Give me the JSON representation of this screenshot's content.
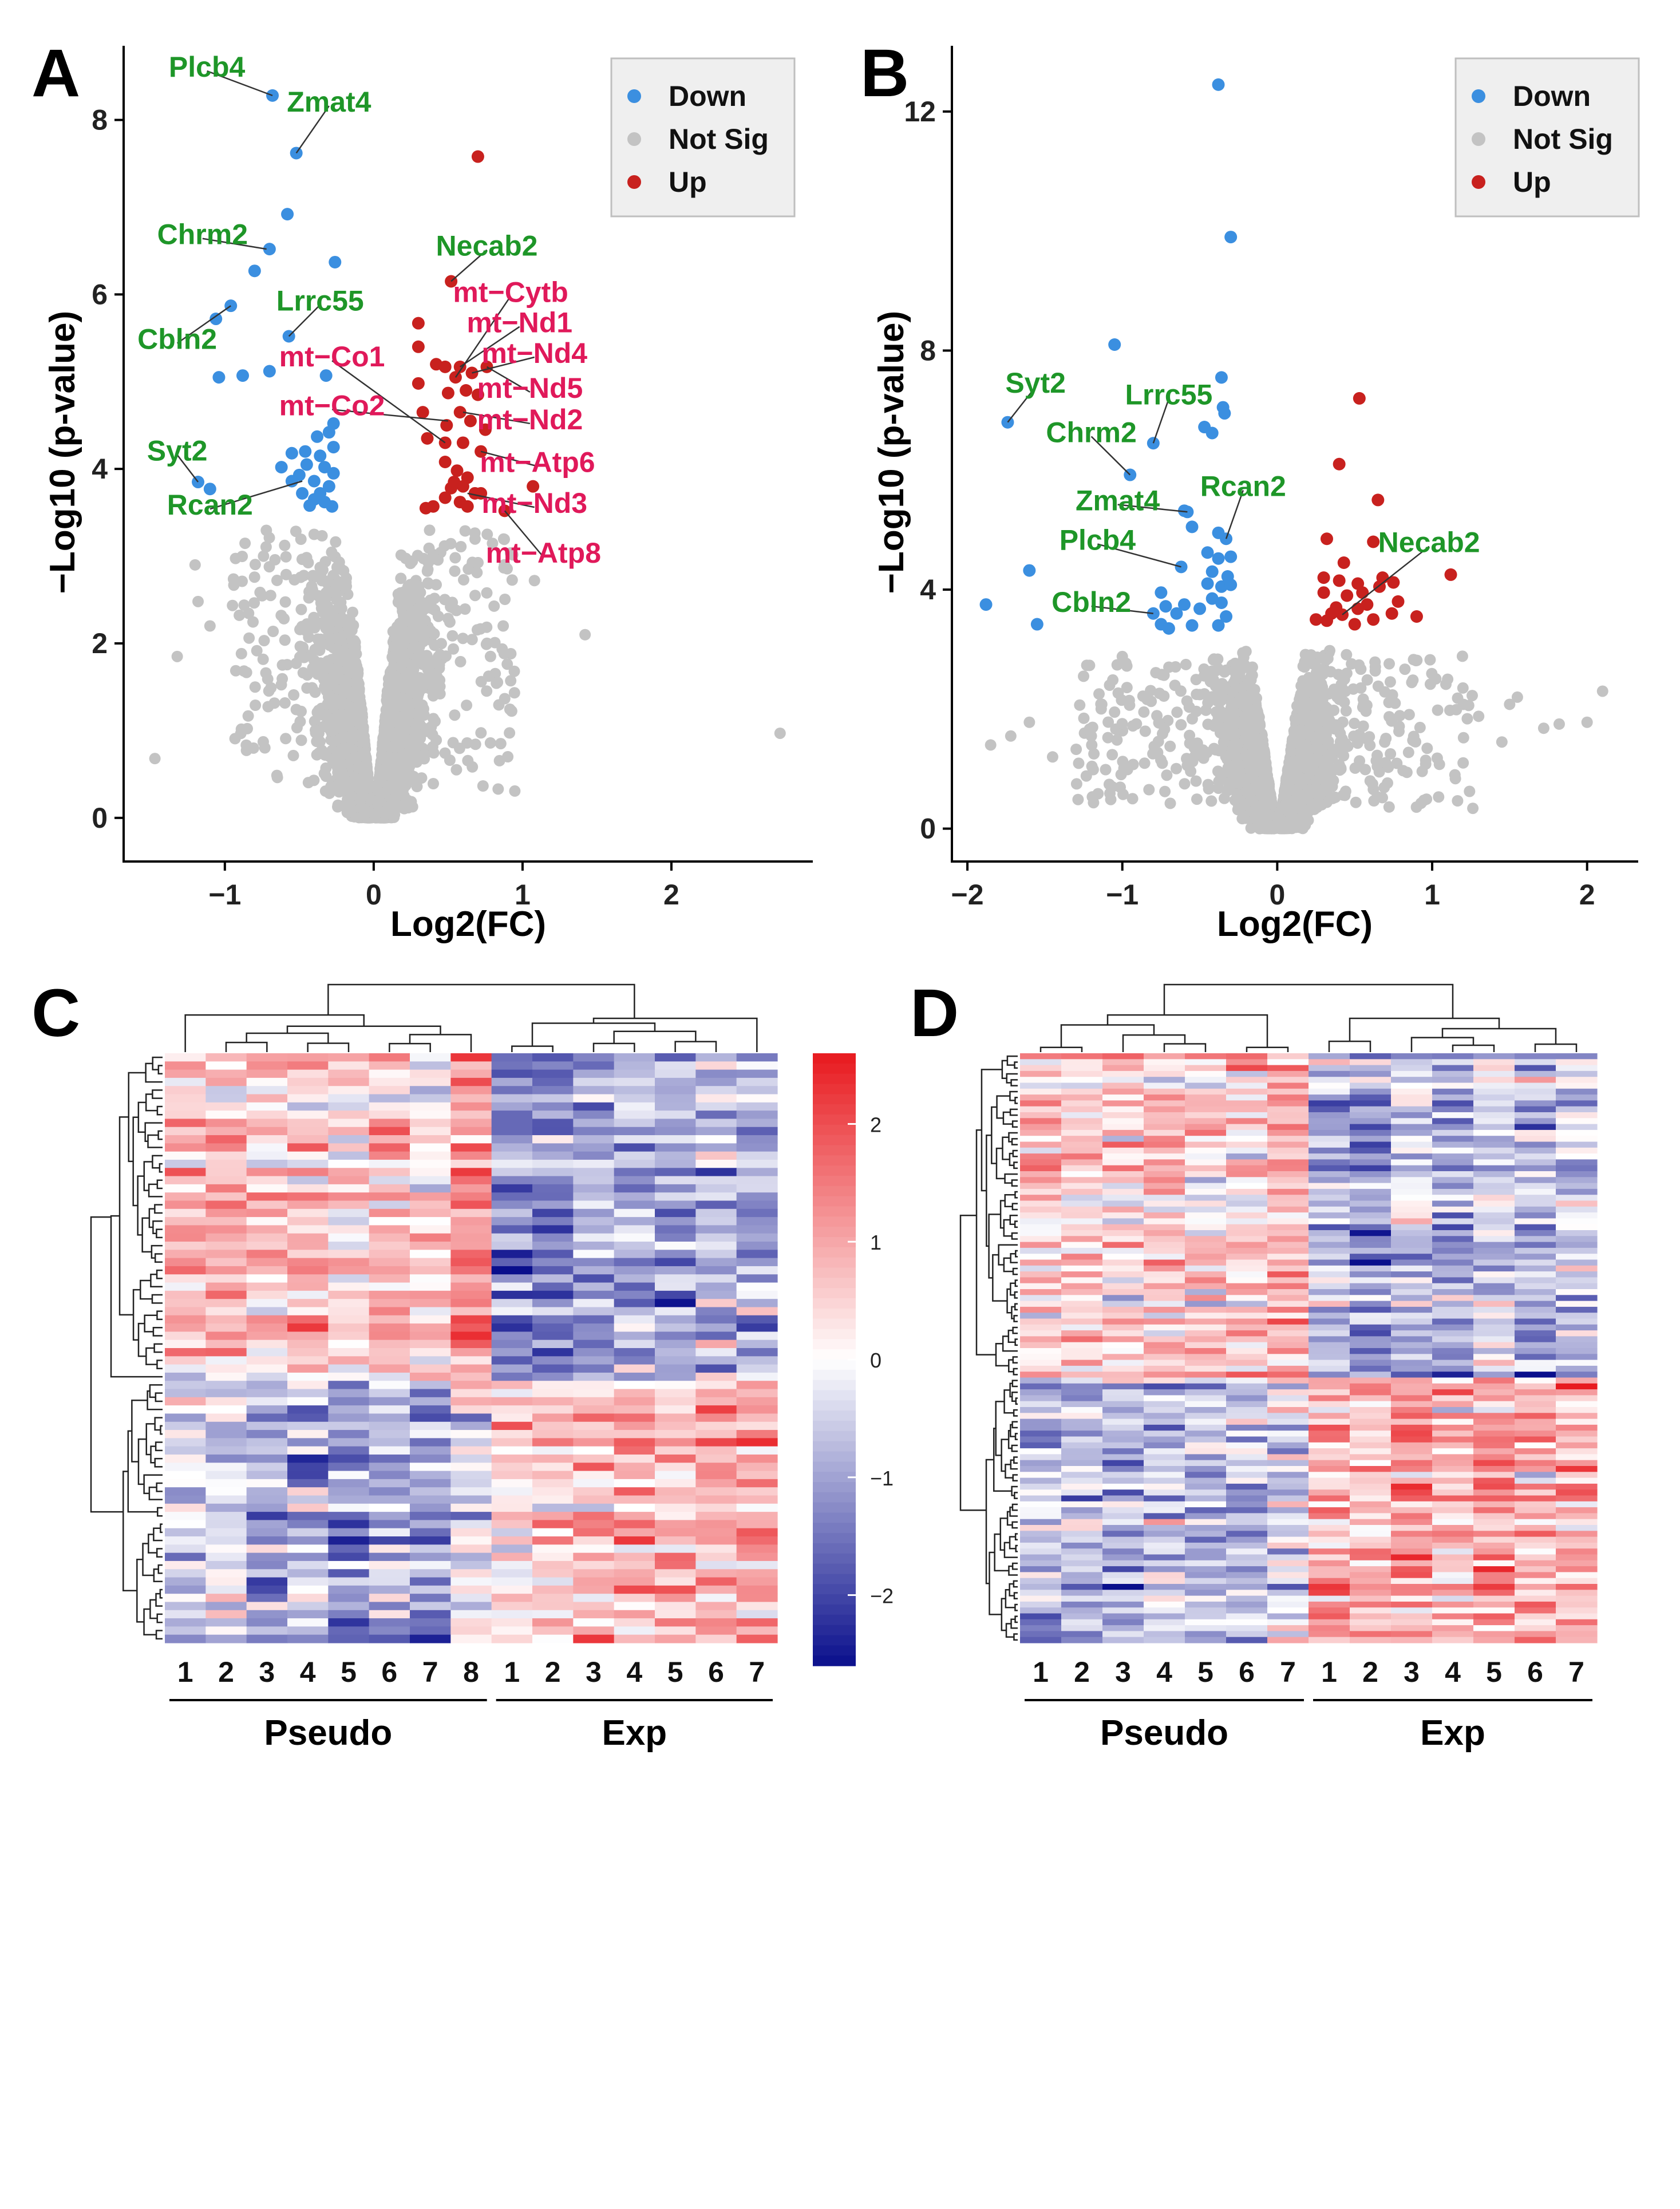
{
  "figure": {
    "panel_letters": [
      "A",
      "B",
      "C",
      "D"
    ]
  },
  "colors": {
    "down": "#3b8fe0",
    "notsig": "#c3c3c3",
    "up": "#c8211e",
    "label_green": "#1e9628",
    "label_pink": "#e0195a",
    "heat_high": "#e8191e",
    "heat_mid": "#ffffff",
    "heat_low": "#0a0f8c"
  },
  "volcano_legend": {
    "down": "Down",
    "notsig": "Not Sig",
    "up": "Up"
  },
  "chart_data": [
    {
      "id": "A",
      "type": "scatter",
      "title": "",
      "xlabel": "Log2(FC)",
      "ylabel": "−Log10 (p-value)",
      "xlim": [
        -1.68,
        2.95
      ],
      "ylim": [
        -0.5,
        8.85
      ],
      "xticks": [
        -1,
        0,
        1,
        2
      ],
      "yticks": [
        0,
        2,
        4,
        6,
        8
      ],
      "xtick_labels": [
        "−1",
        "0",
        "1",
        "2"
      ],
      "ytick_labels": [
        "0",
        "2",
        "4",
        "6",
        "8"
      ],
      "legend_position": "top-right",
      "down_points": [
        [
          -0.68,
          8.28
        ],
        [
          -0.52,
          7.62
        ],
        [
          -0.58,
          6.92
        ],
        [
          -0.7,
          6.52
        ],
        [
          -0.8,
          6.27
        ],
        [
          -0.26,
          6.37
        ],
        [
          -0.96,
          5.87
        ],
        [
          -1.06,
          5.72
        ],
        [
          -0.57,
          5.52
        ],
        [
          -1.04,
          5.05
        ],
        [
          -0.88,
          5.07
        ],
        [
          -0.7,
          5.12
        ],
        [
          -0.32,
          5.07
        ],
        [
          -0.27,
          4.52
        ],
        [
          -0.3,
          4.42
        ],
        [
          -0.38,
          4.37
        ],
        [
          -0.46,
          4.2
        ],
        [
          -0.27,
          4.25
        ],
        [
          -0.36,
          4.15
        ],
        [
          -0.45,
          4.05
        ],
        [
          -0.55,
          4.18
        ],
        [
          -0.62,
          4.02
        ],
        [
          -0.33,
          4.02
        ],
        [
          -0.27,
          3.95
        ],
        [
          -0.5,
          3.93
        ],
        [
          -0.55,
          3.86
        ],
        [
          -0.4,
          3.86
        ],
        [
          -0.3,
          3.8
        ],
        [
          -1.18,
          3.85
        ],
        [
          -1.1,
          3.77
        ],
        [
          -0.48,
          3.72
        ],
        [
          -0.4,
          3.65
        ],
        [
          -0.33,
          3.62
        ],
        [
          -0.28,
          3.57
        ],
        [
          -0.43,
          3.58
        ],
        [
          -0.36,
          3.72
        ]
      ],
      "up_points": [
        [
          0.7,
          7.58
        ],
        [
          0.52,
          6.15
        ],
        [
          0.3,
          5.67
        ],
        [
          0.3,
          5.4
        ],
        [
          0.42,
          5.2
        ],
        [
          0.48,
          5.17
        ],
        [
          0.58,
          5.17
        ],
        [
          0.66,
          5.1
        ],
        [
          0.55,
          5.05
        ],
        [
          0.76,
          5.17
        ],
        [
          0.3,
          4.98
        ],
        [
          0.5,
          4.87
        ],
        [
          0.62,
          4.9
        ],
        [
          0.7,
          4.85
        ],
        [
          0.33,
          4.65
        ],
        [
          0.58,
          4.65
        ],
        [
          0.75,
          4.45
        ],
        [
          0.49,
          4.5
        ],
        [
          0.65,
          4.55
        ],
        [
          0.36,
          4.35
        ],
        [
          0.48,
          4.3
        ],
        [
          0.6,
          4.3
        ],
        [
          0.72,
          4.2
        ],
        [
          0.48,
          4.08
        ],
        [
          0.56,
          3.98
        ],
        [
          0.63,
          3.9
        ],
        [
          0.52,
          3.78
        ],
        [
          0.6,
          3.8
        ],
        [
          0.68,
          3.72
        ],
        [
          0.48,
          3.67
        ],
        [
          0.58,
          3.62
        ],
        [
          0.63,
          3.57
        ],
        [
          0.4,
          3.57
        ],
        [
          0.35,
          3.55
        ],
        [
          0.72,
          3.72
        ],
        [
          1.07,
          3.8
        ],
        [
          0.88,
          3.52
        ],
        [
          0.54,
          3.85
        ]
      ],
      "notsig_outliers": [
        [
          2.73,
          0.97
        ],
        [
          -1.47,
          0.68
        ],
        [
          -1.32,
          1.85
        ],
        [
          -1.18,
          2.48
        ],
        [
          1.42,
          2.1
        ],
        [
          -1.1,
          2.2
        ],
        [
          -1.2,
          2.9
        ],
        [
          1.08,
          2.72
        ]
      ],
      "labels_green": [
        {
          "text": "Plcb4",
          "x": -1.12,
          "y": 8.6,
          "px": -0.68,
          "py": 8.28
        },
        {
          "text": "Zmat4",
          "x": -0.3,
          "y": 8.2,
          "px": -0.52,
          "py": 7.62
        },
        {
          "text": "Chrm2",
          "x": -1.15,
          "y": 6.68,
          "px": -0.72,
          "py": 6.52
        },
        {
          "text": "Necab2",
          "x": 0.76,
          "y": 6.55,
          "px": 0.52,
          "py": 6.15
        },
        {
          "text": "Lrrc55",
          "x": -0.36,
          "y": 5.92,
          "px": -0.57,
          "py": 5.52
        },
        {
          "text": "Cbln2",
          "x": -1.32,
          "y": 5.48,
          "px": -0.96,
          "py": 5.87
        },
        {
          "text": "Syt2",
          "x": -1.32,
          "y": 4.2,
          "px": -1.18,
          "py": 3.85
        },
        {
          "text": "Rcan2",
          "x": -1.1,
          "y": 3.58,
          "px": -0.48,
          "py": 3.86
        }
      ],
      "labels_pink": [
        {
          "text": "mt−Cytb",
          "x": 0.92,
          "y": 6.02,
          "px": 0.55,
          "py": 5.05
        },
        {
          "text": "mt−Nd1",
          "x": 0.98,
          "y": 5.67,
          "px": 0.58,
          "py": 5.17
        },
        {
          "text": "mt−Nd4",
          "x": 1.08,
          "y": 5.32,
          "px": 0.66,
          "py": 5.1
        },
        {
          "text": "mt−Co1",
          "x": -0.28,
          "y": 5.28,
          "px": 0.48,
          "py": 4.3
        },
        {
          "text": "mt−Nd5",
          "x": 1.05,
          "y": 4.92,
          "px": 0.76,
          "py": 5.17
        },
        {
          "text": "mt−Co2",
          "x": -0.28,
          "y": 4.72,
          "px": 0.5,
          "py": 4.55
        },
        {
          "text": "mt−Nd2",
          "x": 1.05,
          "y": 4.56,
          "px": 0.6,
          "py": 4.65
        },
        {
          "text": "mt−Atp6",
          "x": 1.1,
          "y": 4.07,
          "px": 0.72,
          "py": 4.2
        },
        {
          "text": "mt−Nd3",
          "x": 1.08,
          "y": 3.6,
          "px": 0.63,
          "py": 3.72
        },
        {
          "text": "mt−Atp8",
          "x": 1.14,
          "y": 3.03,
          "px": 0.88,
          "py": 3.52
        }
      ]
    },
    {
      "id": "B",
      "type": "scatter",
      "title": "",
      "xlabel": "Log2(FC)",
      "ylabel": "−Log10 (p-value)",
      "xlim": [
        -2.1,
        2.33
      ],
      "ylim": [
        -0.55,
        13.1
      ],
      "xticks": [
        -2,
        -1,
        0,
        1,
        2
      ],
      "yticks": [
        0,
        4,
        8,
        12
      ],
      "xtick_labels": [
        "−2",
        "−1",
        "0",
        "1",
        "2"
      ],
      "ytick_labels": [
        "0",
        "4",
        "8",
        "12"
      ],
      "legend_position": "top-right",
      "down_points": [
        [
          -0.38,
          12.45
        ],
        [
          -0.3,
          9.9
        ],
        [
          -1.05,
          8.1
        ],
        [
          -0.36,
          7.55
        ],
        [
          -0.35,
          7.05
        ],
        [
          -0.47,
          6.72
        ],
        [
          -0.42,
          6.62
        ],
        [
          -1.74,
          6.8
        ],
        [
          -0.8,
          6.45
        ],
        [
          -0.34,
          6.95
        ],
        [
          -0.95,
          5.92
        ],
        [
          -0.58,
          5.3
        ],
        [
          -0.6,
          5.32
        ],
        [
          -0.55,
          5.05
        ],
        [
          -0.38,
          4.95
        ],
        [
          -0.33,
          4.85
        ],
        [
          -0.62,
          4.38
        ],
        [
          -1.6,
          4.32
        ],
        [
          -0.45,
          4.62
        ],
        [
          -0.38,
          4.52
        ],
        [
          -0.3,
          4.55
        ],
        [
          -0.42,
          4.3
        ],
        [
          -0.32,
          4.22
        ],
        [
          -0.45,
          4.1
        ],
        [
          -0.36,
          4.05
        ],
        [
          -0.3,
          4.08
        ],
        [
          -0.75,
          3.95
        ],
        [
          -0.6,
          3.75
        ],
        [
          -0.42,
          3.85
        ],
        [
          -0.36,
          3.78
        ],
        [
          -1.88,
          3.75
        ],
        [
          -0.8,
          3.6
        ],
        [
          -0.72,
          3.72
        ],
        [
          -0.65,
          3.6
        ],
        [
          -0.5,
          3.68
        ],
        [
          -0.33,
          3.55
        ],
        [
          -1.55,
          3.42
        ],
        [
          -0.75,
          3.42
        ],
        [
          -0.7,
          3.35
        ],
        [
          -0.55,
          3.4
        ],
        [
          -0.38,
          3.4
        ]
      ],
      "up_points": [
        [
          0.53,
          7.2
        ],
        [
          0.4,
          6.1
        ],
        [
          0.65,
          5.5
        ],
        [
          0.32,
          4.85
        ],
        [
          0.62,
          4.8
        ],
        [
          0.43,
          4.45
        ],
        [
          1.12,
          4.25
        ],
        [
          0.3,
          4.2
        ],
        [
          0.4,
          4.15
        ],
        [
          0.52,
          4.1
        ],
        [
          0.66,
          4.05
        ],
        [
          0.68,
          4.2
        ],
        [
          0.75,
          4.12
        ],
        [
          0.3,
          3.95
        ],
        [
          0.45,
          3.9
        ],
        [
          0.55,
          3.95
        ],
        [
          0.58,
          3.75
        ],
        [
          0.78,
          3.8
        ],
        [
          0.52,
          3.68
        ],
        [
          0.35,
          3.6
        ],
        [
          0.42,
          3.58
        ],
        [
          0.5,
          3.42
        ],
        [
          0.32,
          3.48
        ],
        [
          0.25,
          3.5
        ],
        [
          0.74,
          3.6
        ],
        [
          0.9,
          3.55
        ],
        [
          0.62,
          3.5
        ],
        [
          0.38,
          3.7
        ]
      ],
      "notsig_outliers": [
        [
          2.1,
          2.3
        ],
        [
          2.0,
          1.78
        ],
        [
          1.82,
          1.75
        ],
        [
          1.72,
          1.68
        ],
        [
          1.5,
          2.08
        ],
        [
          1.3,
          1.88
        ],
        [
          1.45,
          1.45
        ],
        [
          1.1,
          2.5
        ],
        [
          -1.85,
          1.4
        ],
        [
          -1.6,
          1.78
        ],
        [
          -1.45,
          1.2
        ],
        [
          -1.72,
          1.55
        ],
        [
          -1.2,
          1.55
        ],
        [
          -1.25,
          2.55
        ],
        [
          -1.0,
          2.88
        ],
        [
          -1.05,
          1.95
        ],
        [
          1.55,
          2.2
        ],
        [
          1.2,
          1.1
        ]
      ],
      "labels_green": [
        {
          "text": "Syt2",
          "x": -1.56,
          "y": 7.45,
          "px": -1.74,
          "py": 6.8
        },
        {
          "text": "Lrrc55",
          "x": -0.7,
          "y": 7.25,
          "px": -0.8,
          "py": 6.45
        },
        {
          "text": "Chrm2",
          "x": -1.2,
          "y": 6.62,
          "px": -0.95,
          "py": 5.92
        },
        {
          "text": "Zmat4",
          "x": -1.03,
          "y": 5.48,
          "px": -0.58,
          "py": 5.3
        },
        {
          "text": "Rcan2",
          "x": -0.22,
          "y": 5.72,
          "px": -0.33,
          "py": 4.85
        },
        {
          "text": "Plcb4",
          "x": -1.16,
          "y": 4.82,
          "px": -0.62,
          "py": 4.38
        },
        {
          "text": "Necab2",
          "x": 0.98,
          "y": 4.78,
          "px": 0.42,
          "py": 3.58
        },
        {
          "text": "Cbln2",
          "x": -1.2,
          "y": 3.78,
          "px": -0.8,
          "py": 3.6
        }
      ],
      "labels_pink": []
    },
    {
      "id": "C",
      "type": "heatmap",
      "title": "",
      "columns": [
        "1",
        "2",
        "3",
        "4",
        "5",
        "6",
        "7",
        "8",
        "1",
        "2",
        "3",
        "4",
        "5",
        "6",
        "7"
      ],
      "groups": [
        {
          "name": "Pseudo",
          "count": 8
        },
        {
          "name": "Exp",
          "count": 7
        }
      ],
      "n_rows": 72,
      "first_block_rows": 40,
      "value_range": [
        -2.6,
        2.6
      ],
      "colorbar_ticks": [
        2,
        1,
        0,
        -1,
        -2
      ],
      "colorbar_tick_labels": [
        "2",
        "1",
        "0",
        "−1",
        "−2"
      ]
    },
    {
      "id": "D",
      "type": "heatmap",
      "title": "",
      "columns": [
        "1",
        "2",
        "3",
        "4",
        "5",
        "6",
        "7",
        "1",
        "2",
        "3",
        "4",
        "5",
        "6",
        "7"
      ],
      "groups": [
        {
          "name": "Pseudo",
          "count": 7
        },
        {
          "name": "Exp",
          "count": 7
        }
      ],
      "n_rows": 100,
      "first_block_rows": 55,
      "value_range": [
        -2.6,
        2.6
      ]
    }
  ]
}
